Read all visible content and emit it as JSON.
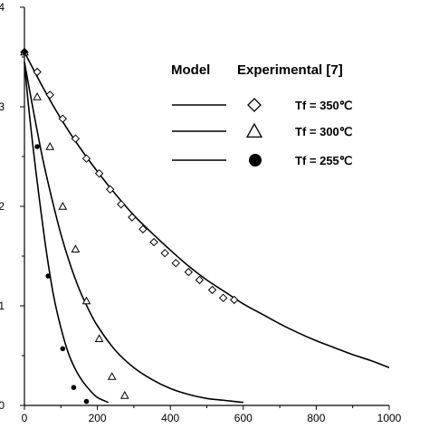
{
  "chart_data": {
    "type": "line",
    "xlabel": "",
    "ylabel": "",
    "xlim": [
      0,
      1000
    ],
    "ylim": [
      0,
      4
    ],
    "x_ticks": [
      0,
      200,
      400,
      600,
      800,
      1000
    ],
    "y_ticks": [
      0,
      1,
      2,
      3,
      4
    ],
    "grid": false,
    "legend": {
      "position": "top-right",
      "model_header": "Model",
      "experimental_header": "Experimental [7]"
    },
    "series": [
      {
        "name": "Tf = 350℃",
        "marker": "diamond",
        "model": {
          "x": [
            0,
            50,
            100,
            150,
            200,
            250,
            300,
            350,
            400,
            450,
            500,
            550,
            600,
            650,
            700,
            750,
            800,
            850,
            900,
            950,
            1000
          ],
          "y": [
            3.55,
            3.2,
            2.88,
            2.6,
            2.35,
            2.12,
            1.91,
            1.73,
            1.56,
            1.4,
            1.26,
            1.14,
            1.02,
            0.92,
            0.82,
            0.73,
            0.65,
            0.58,
            0.51,
            0.45,
            0.38
          ]
        },
        "experimental": {
          "x": [
            0,
            35,
            70,
            105,
            140,
            170,
            205,
            235,
            265,
            295,
            325,
            355,
            385,
            415,
            450,
            480,
            515,
            545,
            575
          ],
          "y": [
            3.55,
            3.35,
            3.12,
            2.88,
            2.68,
            2.48,
            2.33,
            2.17,
            2.02,
            1.89,
            1.77,
            1.64,
            1.53,
            1.43,
            1.34,
            1.26,
            1.16,
            1.08,
            1.06
          ]
        }
      },
      {
        "name": "Tf = 300℃",
        "marker": "triangle",
        "model": {
          "x": [
            0,
            25,
            50,
            75,
            100,
            125,
            150,
            175,
            200,
            250,
            300,
            350,
            400,
            450,
            500,
            550,
            600
          ],
          "y": [
            3.45,
            2.95,
            2.48,
            2.08,
            1.72,
            1.42,
            1.17,
            0.97,
            0.8,
            0.55,
            0.38,
            0.26,
            0.17,
            0.11,
            0.07,
            0.05,
            0.03
          ]
        },
        "experimental": {
          "x": [
            0,
            35,
            70,
            105,
            140,
            170,
            205,
            240,
            275
          ],
          "y": [
            3.55,
            3.1,
            2.6,
            2.0,
            1.57,
            1.05,
            0.67,
            0.29,
            0.1
          ]
        }
      },
      {
        "name": "Tf = 255℃",
        "marker": "circle",
        "model": {
          "x": [
            0,
            10,
            25,
            40,
            60,
            80,
            100,
            120,
            140,
            160,
            180,
            200,
            230
          ],
          "y": [
            3.45,
            3.05,
            2.55,
            2.1,
            1.55,
            1.1,
            0.78,
            0.53,
            0.36,
            0.24,
            0.15,
            0.08,
            0.03
          ]
        },
        "experimental": {
          "x": [
            0,
            35,
            65,
            105,
            135,
            170
          ],
          "y": [
            3.55,
            2.6,
            1.3,
            0.57,
            0.18,
            0.04
          ]
        }
      }
    ]
  }
}
